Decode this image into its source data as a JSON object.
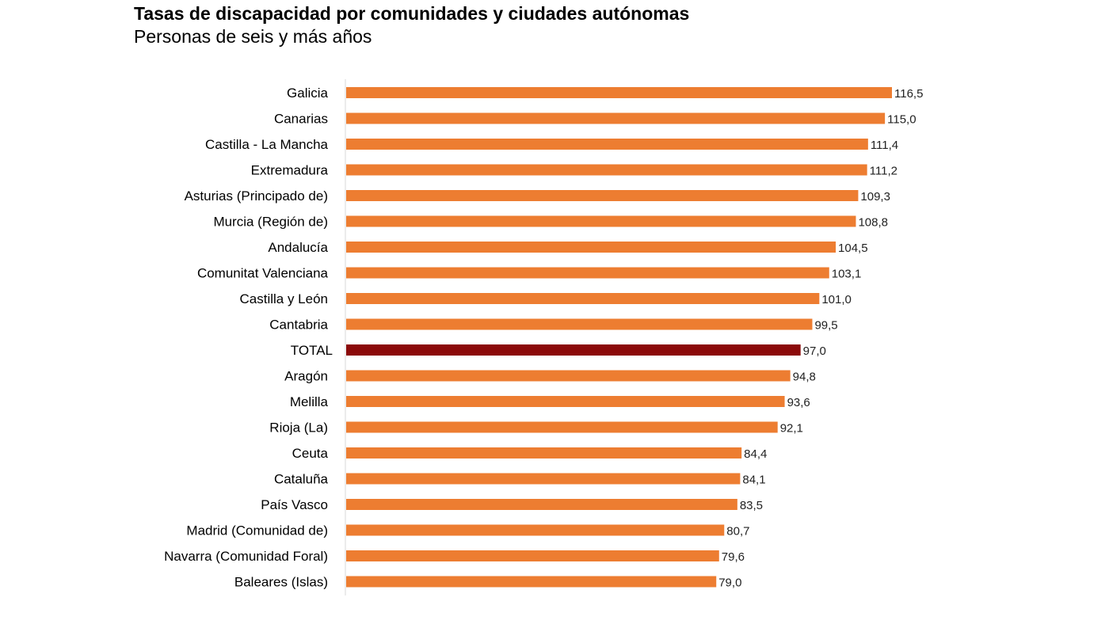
{
  "title": "Tasas de discapacidad por comunidades y ciudades autónomas",
  "subtitle": "Personas de seis y más años",
  "colors": {
    "bar": "#ED7D31",
    "highlight": "#8B0A0A",
    "axis": "#D9D9D9"
  },
  "chart_data": {
    "type": "bar",
    "orientation": "horizontal",
    "title": "Tasas de discapacidad por comunidades y ciudades autónomas",
    "subtitle": "Personas de seis y más años",
    "xlabel": "",
    "ylabel": "",
    "xlim": [
      0,
      120
    ],
    "grid": false,
    "legend": "none",
    "highlight_category": "TOTAL",
    "categories": [
      "Galicia",
      "Canarias",
      "Castilla - La Mancha",
      "Extremadura",
      "Asturias (Principado de)",
      "Murcia (Región de)",
      "Andalucía",
      "Comunitat Valenciana",
      "Castilla y León",
      "Cantabria",
      "TOTAL",
      "Aragón",
      "Melilla",
      "Rioja (La)",
      "Ceuta",
      "Cataluña",
      "País Vasco",
      "Madrid (Comunidad de)",
      "Navarra (Comunidad Foral)",
      "Baleares (Islas)"
    ],
    "values": [
      116.5,
      115.0,
      111.4,
      111.2,
      109.3,
      108.8,
      104.5,
      103.1,
      101.0,
      99.5,
      97.0,
      94.8,
      93.6,
      92.1,
      84.4,
      84.1,
      83.5,
      80.7,
      79.6,
      79.0
    ],
    "value_labels": [
      "116,5",
      "115,0",
      "111,4",
      "111,2",
      "109,3",
      "108,8",
      "104,5",
      "103,1",
      "101,0",
      "99,5",
      "97,0",
      "94,8",
      "93,6",
      "92,1",
      "84,4",
      "84,1",
      "83,5",
      "80,7",
      "79,6",
      "79,0"
    ]
  }
}
